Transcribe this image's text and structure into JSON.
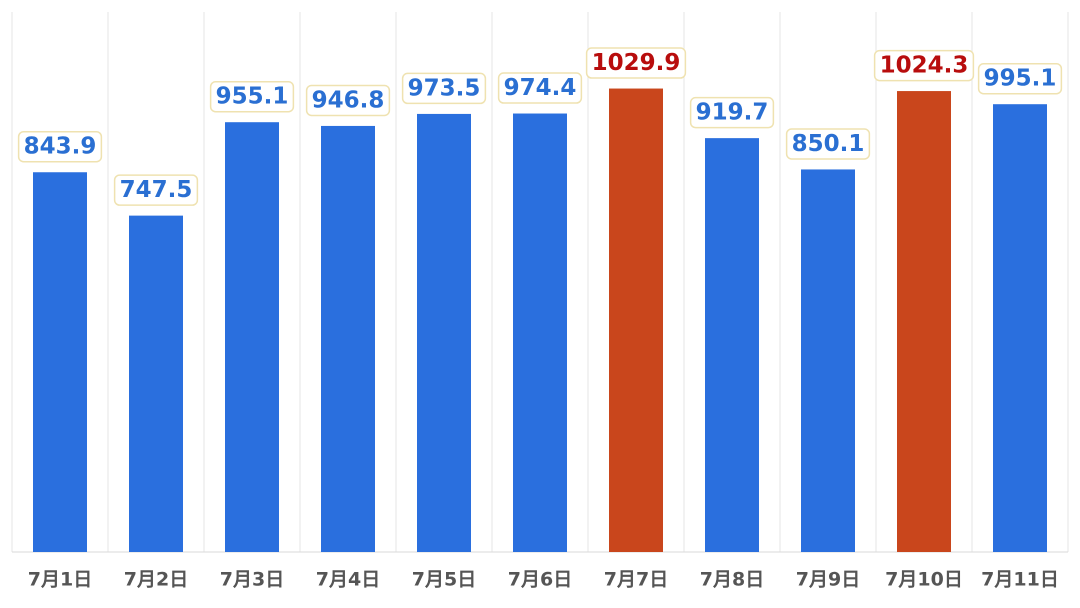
{
  "chart_data": {
    "type": "bar",
    "categories": [
      "7月1日",
      "7月2日",
      "7月3日",
      "7月4日",
      "7月5日",
      "7月6日",
      "7月7日",
      "7月8日",
      "7月9日",
      "7月10日",
      "7月11日"
    ],
    "values": [
      843.9,
      747.5,
      955.1,
      946.8,
      973.5,
      974.4,
      1029.9,
      919.7,
      850.1,
      1024.3,
      995.1
    ],
    "colors": [
      "#2a6fde",
      "#2a6fde",
      "#2a6fde",
      "#2a6fde",
      "#2a6fde",
      "#2a6fde",
      "#c9461c",
      "#2a6fde",
      "#2a6fde",
      "#c9461c",
      "#2a6fde"
    ],
    "label_colors": [
      "#2a6fd2",
      "#2a6fd2",
      "#2a6fd2",
      "#2a6fd2",
      "#2a6fd2",
      "#2a6fd2",
      "#b80d0d",
      "#2a6fd2",
      "#2a6fd2",
      "#b80d0d",
      "#2a6fd2"
    ],
    "ylim": [
      0,
      1200
    ]
  }
}
